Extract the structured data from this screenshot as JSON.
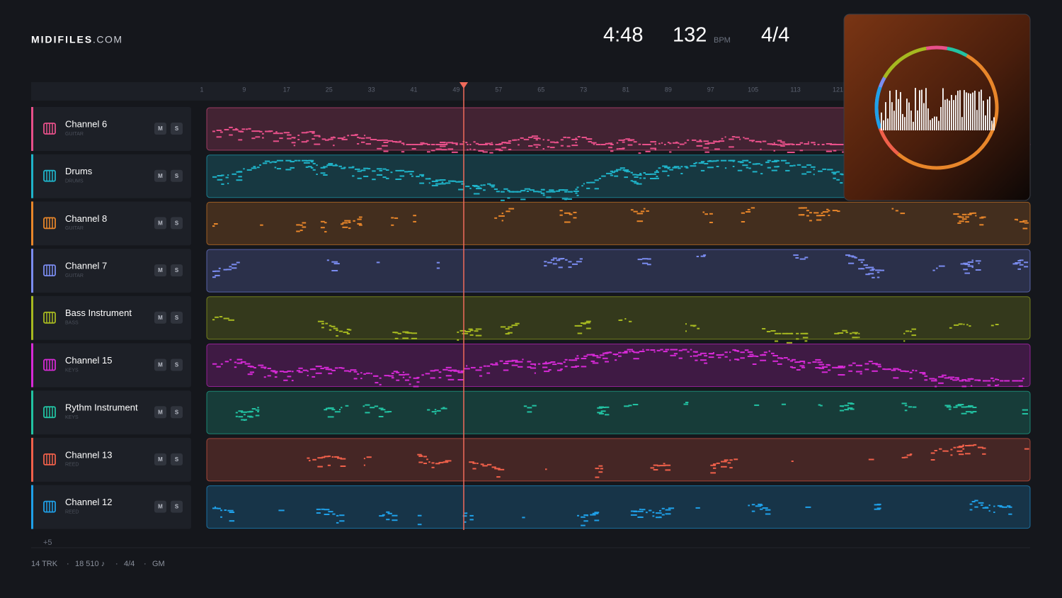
{
  "header": {
    "brand": "MIDIFILES",
    "brand_suffix": ".COM"
  },
  "transport": {
    "duration": "4:48",
    "tempo": "132",
    "tempo_unit": "BPM",
    "meter": "4/4"
  },
  "ruler": [
    "1",
    "9",
    "17",
    "25",
    "33",
    "41",
    "49",
    "57",
    "65",
    "73",
    "81",
    "89",
    "97",
    "105",
    "113",
    "121"
  ],
  "tracks": [
    {
      "name": "Channel 6",
      "instrument": "GUITAR",
      "mute": "M",
      "solo": "S",
      "color": "#e8508a"
    },
    {
      "name": "Drums",
      "instrument": "DRUMS",
      "mute": "M",
      "solo": "S",
      "color": "#1fb3c9"
    },
    {
      "name": "Channel 8",
      "instrument": "GUITAR",
      "mute": "M",
      "solo": "S",
      "color": "#e8862a"
    },
    {
      "name": "Channel 7",
      "instrument": "GUITAR",
      "mute": "M",
      "solo": "S",
      "color": "#7b8cf0"
    },
    {
      "name": "Bass Instrument",
      "instrument": "BASS",
      "mute": "M",
      "solo": "S",
      "color": "#a6b820"
    },
    {
      "name": "Channel 15",
      "instrument": "KEYS",
      "mute": "M",
      "solo": "S",
      "color": "#d62ad6"
    },
    {
      "name": "Rythm Instrument",
      "instrument": "KEYS",
      "mute": "M",
      "solo": "S",
      "color": "#22c2a2"
    },
    {
      "name": "Channel 13",
      "instrument": "REED",
      "mute": "M",
      "solo": "S",
      "color": "#f0604a"
    },
    {
      "name": "Channel 12",
      "instrument": "REED",
      "mute": "M",
      "solo": "S",
      "color": "#1fa0e8"
    }
  ],
  "more_tracks": "+5",
  "footer": {
    "items": [
      "14 TRK",
      "18 510 ♪",
      "4/4",
      "GM"
    ],
    "separator": "·"
  }
}
